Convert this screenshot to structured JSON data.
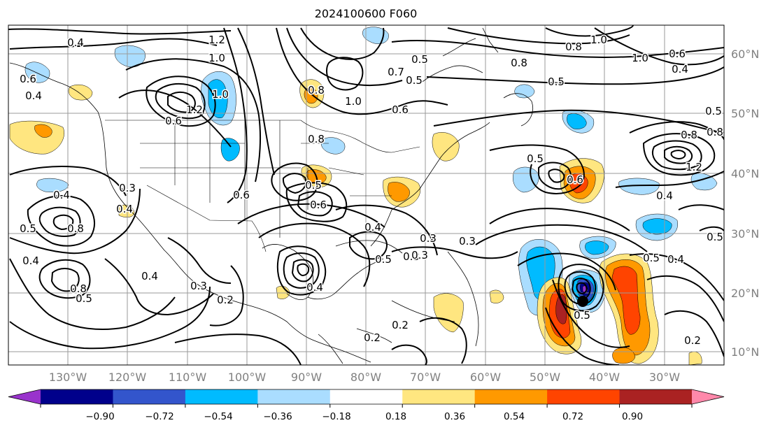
{
  "title": "2024100600 F060",
  "lat_labels": [
    "60°N",
    "50°N",
    "40°N",
    "30°N",
    "20°N",
    "10°N"
  ],
  "lon_labels": [
    "130°W",
    "120°W",
    "110°W",
    "100°W",
    "90°W",
    "80°W",
    "70°W",
    "60°W",
    "50°W",
    "40°W",
    "30°W"
  ],
  "colorbar": {
    "ticks": [
      "−0.90",
      "−0.72",
      "−0.54",
      "−0.36",
      "−0.18",
      "0.18",
      "0.36",
      "0.54",
      "0.72",
      "0.90"
    ],
    "colors": [
      "#9933cc",
      "#00008b",
      "#3355cc",
      "#00bbff",
      "#aaddff",
      "#ffffff",
      "#ffe680",
      "#ff9900",
      "#ff4400",
      "#aa2222",
      "#ff88aa"
    ]
  },
  "contour_labels": [
    "0.4",
    "1.2",
    "1.0",
    "0.8",
    "0.5",
    "0.7",
    "1.0",
    "1.0",
    "0.8",
    "0.6",
    "0.4",
    "1.0",
    "0.4",
    "1.2",
    "0.6",
    "0.8",
    "0.6",
    "1.0",
    "0.6",
    "0.5",
    "0.5",
    "0.5",
    "0.8",
    "0.6",
    "0.5",
    "0.8",
    "0.8",
    "1.2",
    "0.4",
    "0.4",
    "0.3",
    "0.5",
    "0.8",
    "0.6",
    "0.4",
    "0.5",
    "0.3",
    "0.4",
    "0.2",
    "0.3",
    "0.4",
    "0.5",
    "0.3",
    "0.3",
    "0.2",
    "0.8",
    "0.5",
    "0.6",
    "0.5",
    "0.4",
    "0.5",
    "0.3",
    "0.4",
    "0.2",
    "0.4",
    "0.2",
    "0.5"
  ]
}
